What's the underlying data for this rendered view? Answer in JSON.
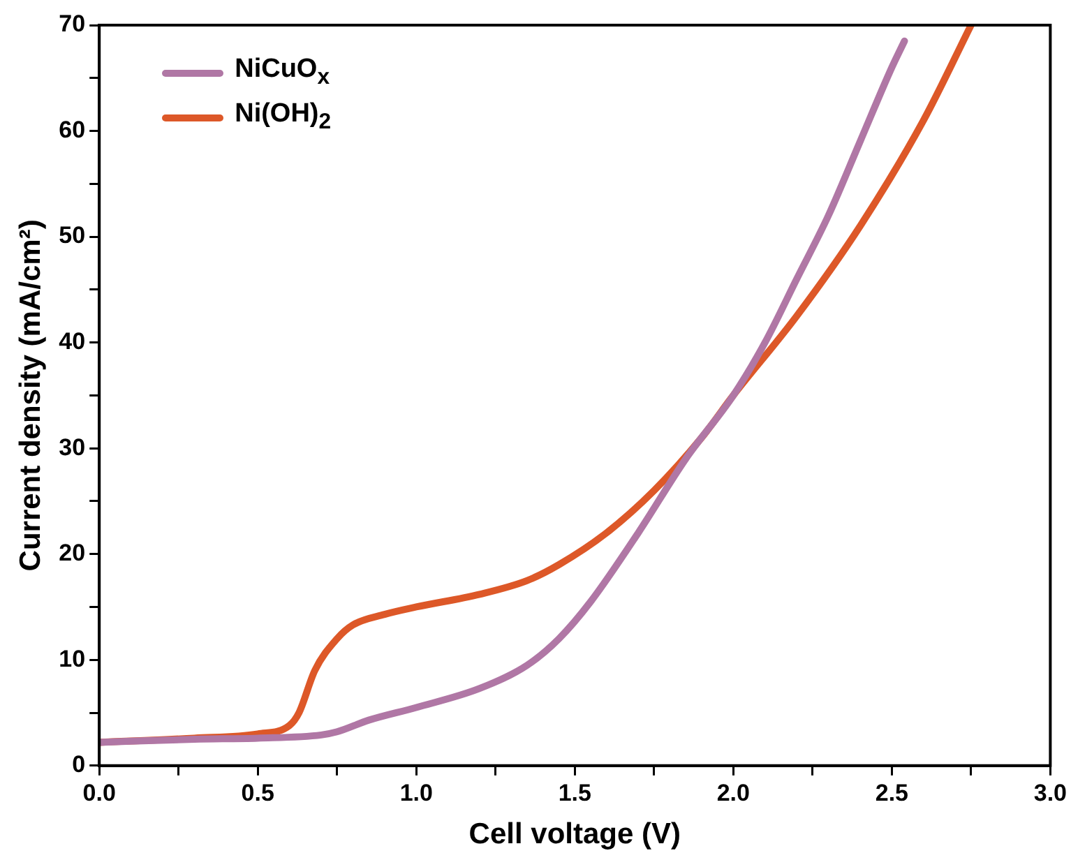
{
  "chart_data": {
    "type": "line",
    "xlabel": "Cell voltage (V)",
    "ylabel": "Current density (mA/cm²)",
    "xlim": [
      0,
      3
    ],
    "ylim": [
      0,
      70
    ],
    "xticks": [
      {
        "value": 0,
        "label": "0.0"
      },
      {
        "value": 0.25,
        "label": null
      },
      {
        "value": 0.5,
        "label": "0.5"
      },
      {
        "value": 0.75,
        "label": null
      },
      {
        "value": 1,
        "label": "1.0"
      },
      {
        "value": 1.25,
        "label": null
      },
      {
        "value": 1.5,
        "label": "1.5"
      },
      {
        "value": 1.75,
        "label": null
      },
      {
        "value": 2,
        "label": "2.0"
      },
      {
        "value": 2.25,
        "label": null
      },
      {
        "value": 2.5,
        "label": "2.5"
      },
      {
        "value": 2.75,
        "label": null
      },
      {
        "value": 3,
        "label": "3.0"
      }
    ],
    "yticks": [
      0,
      {
        "value": 5,
        "label": null
      },
      10,
      {
        "value": 15,
        "label": null
      },
      20,
      {
        "value": 25,
        "label": null
      },
      30,
      {
        "value": 35,
        "label": null
      },
      40,
      {
        "value": 45,
        "label": null
      },
      50,
      {
        "value": 55,
        "label": null
      },
      60,
      {
        "value": 65,
        "label": null
      },
      70
    ],
    "grid": false,
    "legend": "top left",
    "marker": "none",
    "line_style": "solid",
    "series": [
      {
        "name": "NiCuO$_{x}$",
        "color": "#b077a5",
        "x": [
          0,
          0.3,
          0.5,
          0.7,
          0.75,
          0.85,
          1.0,
          1.2,
          1.35,
          1.45,
          1.55,
          1.7,
          1.85,
          2.0,
          2.1,
          2.2,
          2.3,
          2.4,
          2.5,
          2.54
        ],
        "values": [
          2.2,
          2.5,
          2.6,
          2.9,
          3.2,
          4.3,
          5.5,
          7.3,
          9.5,
          12,
          15.5,
          22,
          29,
          35,
          40,
          46,
          52,
          59,
          66,
          68.5
        ]
      },
      {
        "name": "Ni(OH)$_{2}$",
        "color": "#dd5828",
        "x": [
          0,
          0.3,
          0.5,
          0.6,
          0.63,
          0.68,
          0.75,
          0.8,
          0.9,
          1.0,
          1.2,
          1.35,
          1.45,
          1.6,
          1.75,
          1.9,
          2.0,
          2.2,
          2.4,
          2.6,
          2.75
        ],
        "values": [
          2.2,
          2.6,
          3.0,
          3.8,
          5,
          9,
          12,
          13.3,
          14.3,
          15,
          16.2,
          17.5,
          19,
          22,
          26,
          31,
          35,
          42.5,
          51,
          61,
          70
        ]
      }
    ]
  }
}
